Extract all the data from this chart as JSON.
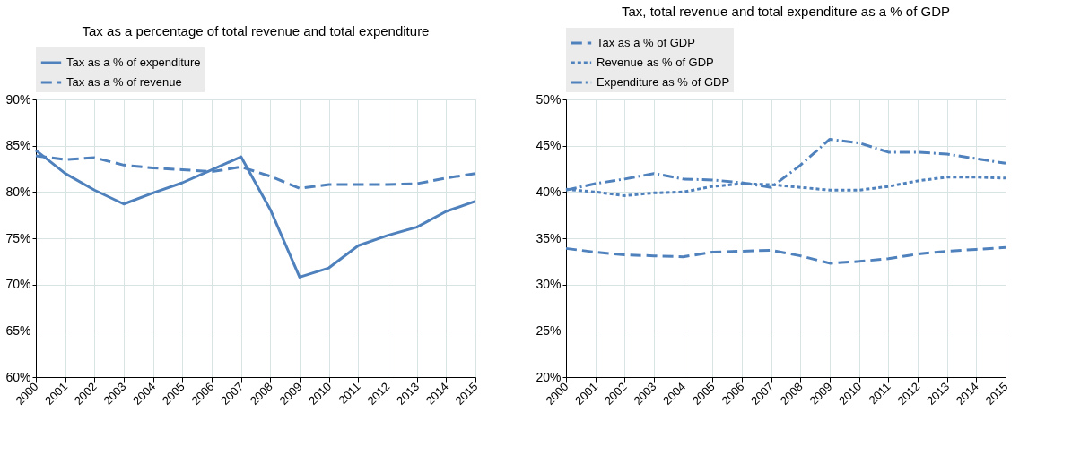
{
  "chart_data": [
    {
      "type": "line",
      "title": "Tax as a percentage of total revenue and total expenditure",
      "categories": [
        "2000",
        "2001",
        "2002",
        "2003",
        "2004",
        "2005",
        "2006",
        "2007",
        "2008",
        "2009",
        "2010",
        "2011",
        "2012",
        "2013",
        "2014",
        "2015"
      ],
      "series": [
        {
          "name": "Tax as a % of expenditure",
          "color": "#4f81bd",
          "line_style": "solid",
          "values": [
            84.5,
            82.0,
            80.2,
            78.7,
            79.9,
            81.0,
            82.4,
            83.8,
            78.1,
            70.8,
            71.8,
            74.2,
            75.3,
            76.2,
            77.9,
            79.0
          ]
        },
        {
          "name": "Tax as a % of revenue",
          "color": "#4f81bd",
          "line_style": "dashed",
          "values": [
            83.9,
            83.5,
            83.7,
            82.9,
            82.6,
            82.4,
            82.2,
            82.7,
            81.7,
            80.4,
            80.8,
            80.8,
            80.8,
            80.9,
            81.5,
            82.0
          ]
        }
      ],
      "ylim": [
        60,
        90
      ],
      "yticks": [
        {
          "value": 60,
          "label": "60%"
        },
        {
          "value": 65,
          "label": "65%"
        },
        {
          "value": 70,
          "label": "70%"
        },
        {
          "value": 75,
          "label": "75%"
        },
        {
          "value": 80,
          "label": "80%"
        },
        {
          "value": 85,
          "label": "85%"
        },
        {
          "value": 90,
          "label": "90%"
        }
      ],
      "grid": true,
      "legend": "top",
      "marker": "none"
    },
    {
      "type": "line",
      "title": "Tax, total revenue and total expenditure as a % of GDP",
      "categories": [
        "2000",
        "2001",
        "2002",
        "2003",
        "2004",
        "2005",
        "2006",
        "2007",
        "2008",
        "2009",
        "2010",
        "2011",
        "2012",
        "2013",
        "2014",
        "2015"
      ],
      "series": [
        {
          "name": "Tax as a % of GDP",
          "color": "#4f81bd",
          "line_style": "dashed",
          "values": [
            33.9,
            33.5,
            33.2,
            33.1,
            33.0,
            33.5,
            33.6,
            33.7,
            33.1,
            32.3,
            32.5,
            32.8,
            33.3,
            33.6,
            33.8,
            34.0
          ]
        },
        {
          "name": "Revenue as % of GDP",
          "color": "#4f81bd",
          "line_style": "dotted",
          "values": [
            40.3,
            40.0,
            39.6,
            39.9,
            40.0,
            40.6,
            40.9,
            40.8,
            40.5,
            40.2,
            40.2,
            40.6,
            41.2,
            41.6,
            41.6,
            41.5
          ]
        },
        {
          "name": "Expenditure as % of GDP",
          "color": "#4f81bd",
          "line_style": "dashdot",
          "values": [
            40.2,
            40.9,
            41.4,
            42.0,
            41.4,
            41.3,
            41.0,
            40.5,
            42.9,
            45.7,
            45.3,
            44.3,
            44.3,
            44.1,
            43.6,
            43.1
          ]
        }
      ],
      "ylim": [
        20,
        50
      ],
      "yticks": [
        {
          "value": 20,
          "label": "20%"
        },
        {
          "value": 25,
          "label": "25%"
        },
        {
          "value": 30,
          "label": "30%"
        },
        {
          "value": 35,
          "label": "35%"
        },
        {
          "value": 40,
          "label": "40%"
        },
        {
          "value": 45,
          "label": "45%"
        },
        {
          "value": 50,
          "label": "50%"
        }
      ],
      "grid": true,
      "legend": "top",
      "marker": "none"
    }
  ]
}
